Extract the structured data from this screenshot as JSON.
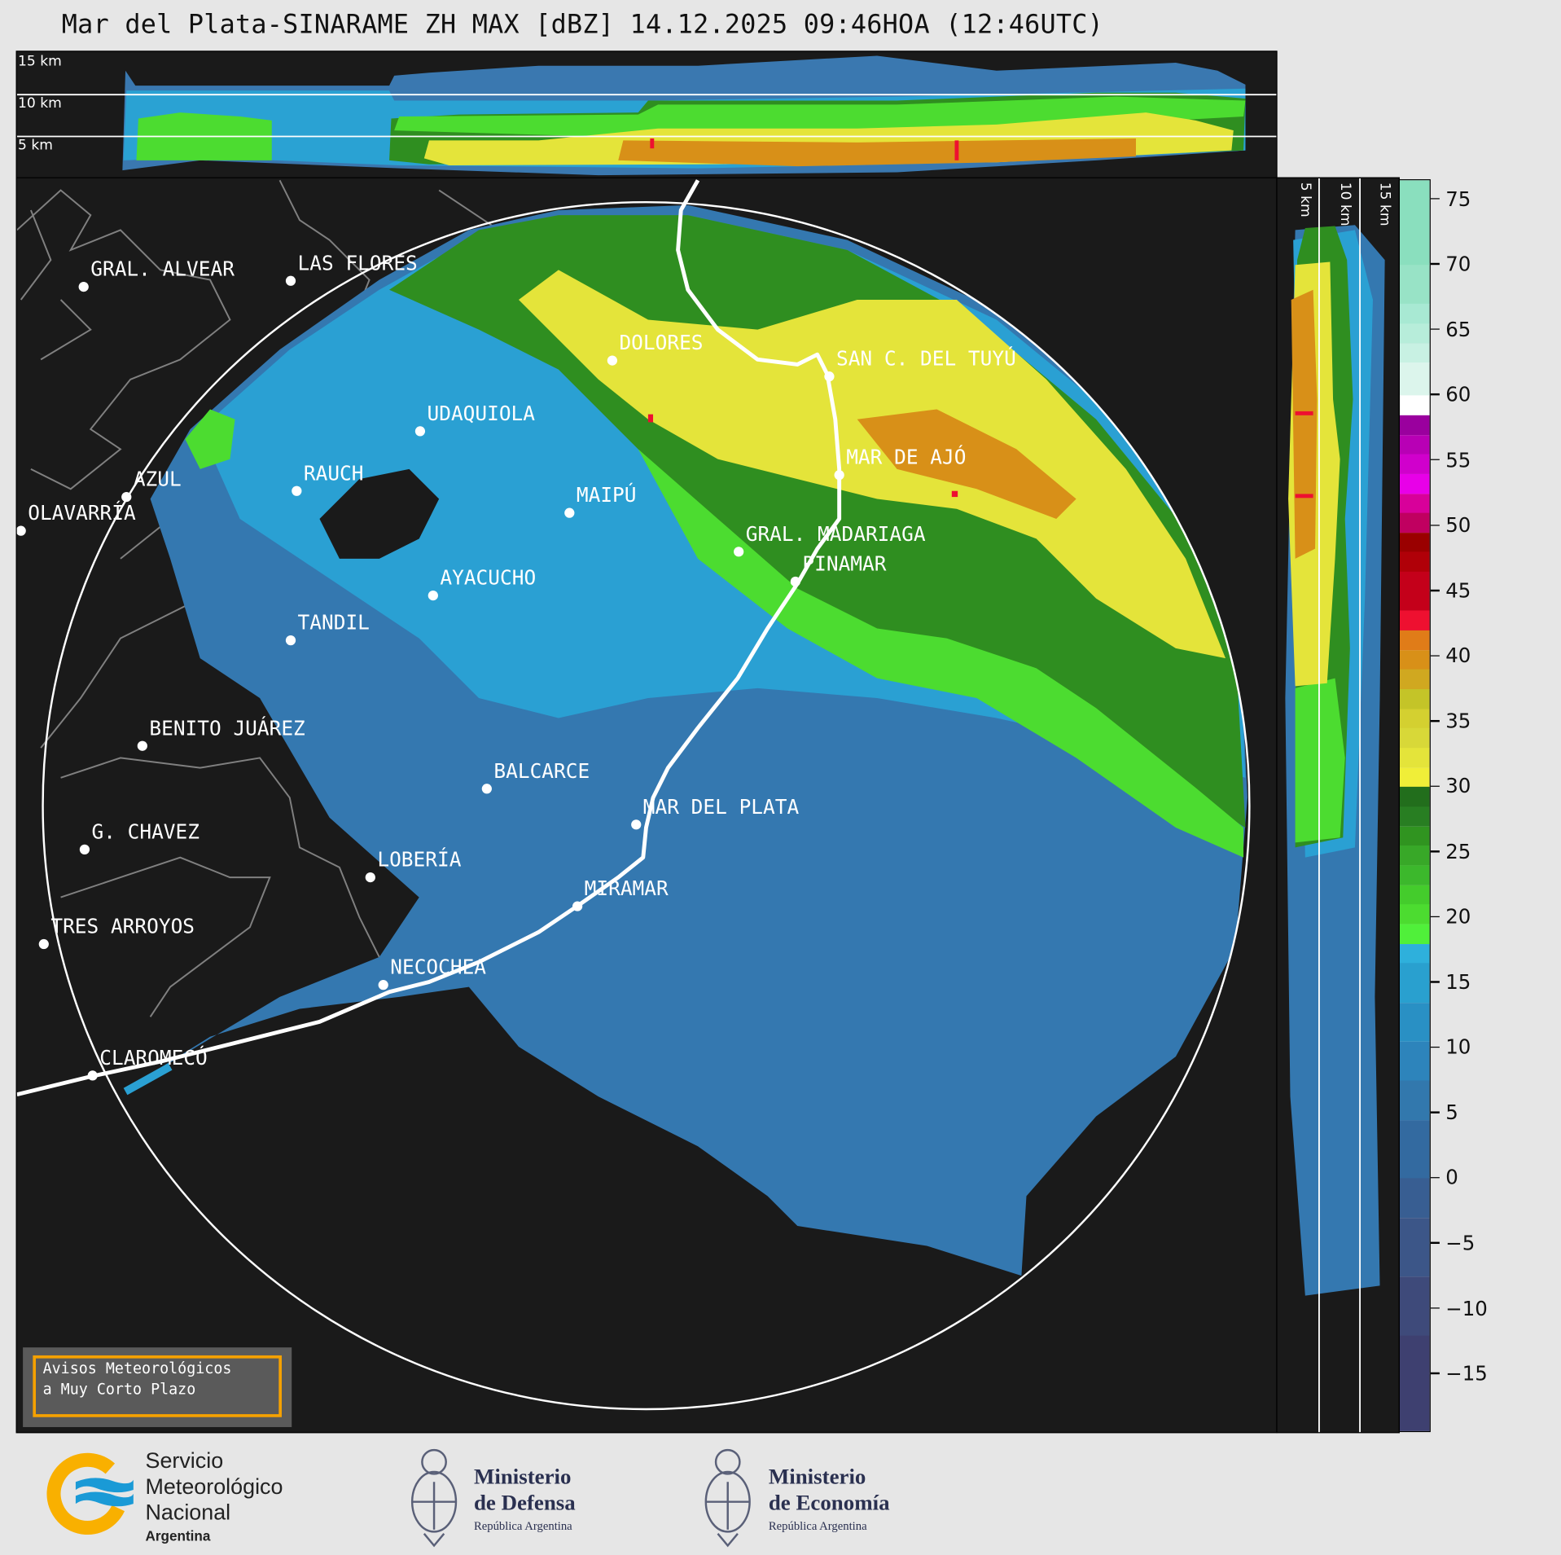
{
  "title": "Mar del Plata-SINARAME ZH MAX [dBZ] 14.12.2025 09:46HOA (12:46UTC)",
  "top_panel": {
    "range_labels": [
      "15 km",
      "10 km",
      "5 km"
    ]
  },
  "side_panel": {
    "range_labels": [
      "5 km",
      "10 km",
      "15 km"
    ]
  },
  "map": {
    "background": "#1a1a1a",
    "coastline_color": "#ffffff",
    "border_color": "#808080",
    "cities": [
      "GRAL. ALVEAR",
      "LAS FLORES",
      "DOLORES",
      "SAN C. DEL TUYÚ",
      "UDAQUIOLA",
      "AZUL",
      "RAUCH",
      "OLAVARRÍA",
      "MAIPÚ",
      "MAR DE AJÓ",
      "GRAL. MADARIAGA",
      "PINAMAR",
      "AYACUCHO",
      "TANDIL",
      "BENITO JUÁREZ",
      "BALCARCE",
      "MAR DEL PLATA",
      "G. CHAVEZ",
      "LOBERÍA",
      "MIRAMAR",
      "TRES ARROYOS",
      "NECOCHEA",
      "CLAROMECÓ"
    ]
  },
  "colorbar": {
    "unit": "dBZ",
    "range": [
      -19.5,
      76.5
    ],
    "ticks": [
      75,
      70,
      65,
      60,
      55,
      50,
      45,
      40,
      35,
      30,
      25,
      20,
      15,
      10,
      5,
      0,
      -5,
      -10,
      -15
    ],
    "tick_labels": [
      "75",
      "70",
      "65",
      "60",
      "55",
      "50",
      "45",
      "40",
      "35",
      "30",
      "25",
      "20",
      "15",
      "10",
      "5",
      "0",
      "−5",
      "−10",
      "−15"
    ],
    "bands": [
      [
        70,
        76.5,
        "#8adfbe"
      ],
      [
        67,
        70,
        "#98e3c6"
      ],
      [
        65.5,
        67,
        "#a8e9d3"
      ],
      [
        64,
        65.5,
        "#b7edda"
      ],
      [
        62.5,
        64,
        "#c8f1e3"
      ],
      [
        60,
        62.5,
        "#dcf5ec"
      ],
      [
        58.5,
        60,
        "#ffffff"
      ],
      [
        57,
        58.5,
        "#9a009e"
      ],
      [
        55.5,
        57,
        "#b800b5"
      ],
      [
        54,
        55.5,
        "#d000cc"
      ],
      [
        52.5,
        54,
        "#e800e8"
      ],
      [
        51,
        52.5,
        "#d8009a"
      ],
      [
        49.5,
        51,
        "#c00060"
      ],
      [
        48,
        49.5,
        "#9a0000"
      ],
      [
        46.5,
        48,
        "#b00008"
      ],
      [
        43.5,
        46.5,
        "#c4001a"
      ],
      [
        42,
        43.5,
        "#ee1030"
      ],
      [
        40.5,
        42,
        "#e07c18"
      ],
      [
        39,
        40.5,
        "#d89018"
      ],
      [
        37.5,
        39,
        "#d0a820"
      ],
      [
        36,
        37.5,
        "#c4c428"
      ],
      [
        34.5,
        36,
        "#d4d030"
      ],
      [
        33,
        34.5,
        "#d8d838"
      ],
      [
        31.5,
        33,
        "#e4e43a"
      ],
      [
        30,
        31.5,
        "#f0ee38"
      ],
      [
        28.5,
        30,
        "#226e1c"
      ],
      [
        27,
        28.5,
        "#287e22"
      ],
      [
        25.5,
        27,
        "#309420"
      ],
      [
        24,
        25.5,
        "#38a828"
      ],
      [
        22.5,
        24,
        "#3cb82c"
      ],
      [
        21,
        22.5,
        "#44cc2c"
      ],
      [
        19.5,
        21,
        "#4cdc30"
      ],
      [
        18,
        19.5,
        "#50f03a"
      ],
      [
        16.5,
        18,
        "#2eb0dc"
      ],
      [
        13.5,
        16.5,
        "#29a0cf"
      ],
      [
        10.5,
        13.5,
        "#2990c4"
      ],
      [
        7.5,
        10.5,
        "#2d84bb"
      ],
      [
        4.5,
        7.5,
        "#3278ad"
      ],
      [
        0,
        4.5,
        "#336aa0"
      ],
      [
        -3,
        0,
        "#385e92"
      ],
      [
        -7.5,
        -3,
        "#3c5688"
      ],
      [
        -12,
        -7.5,
        "#3e4a7a"
      ],
      [
        -19.5,
        -12,
        "#3e4070"
      ]
    ]
  },
  "notice": {
    "line1": "Avisos Meteorológicos",
    "line2": "a Muy Corto Plazo",
    "border_color": "#f5a100"
  },
  "footer": {
    "smn": {
      "line1": "Servicio",
      "line2": "Meteorológico",
      "line3": "Nacional",
      "line4": "Argentina"
    },
    "defensa": {
      "line1": "Ministerio",
      "line2": "de Defensa",
      "line3": "República Argentina"
    },
    "economia": {
      "line1": "Ministerio",
      "line2": "de Economía",
      "line3": "República Argentina"
    }
  }
}
